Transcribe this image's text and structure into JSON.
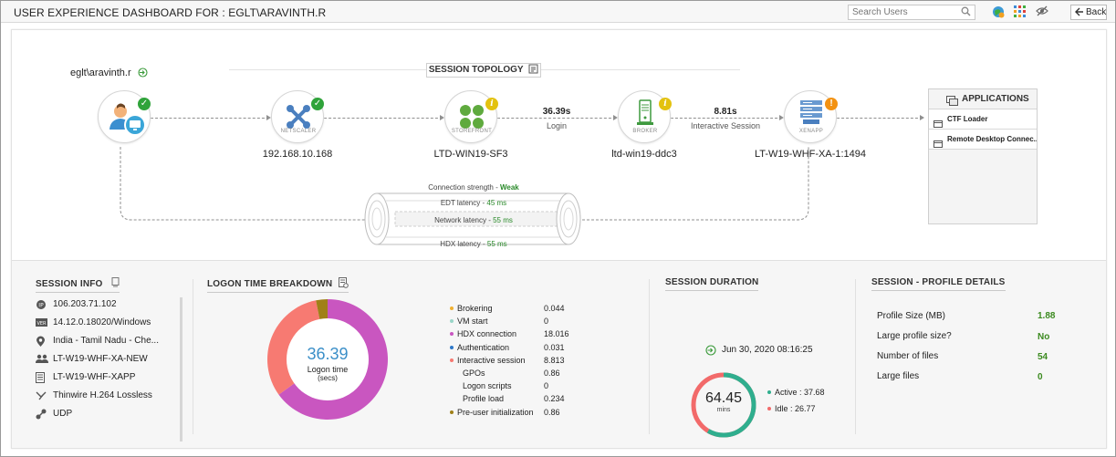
{
  "header": {
    "title": "USER EXPERIENCE DASHBOARD FOR : EGLT\\ARAVINTH.R",
    "search_placeholder": "Search Users",
    "back_label": "Back"
  },
  "topology": {
    "title": "SESSION TOPOLOGY",
    "user": "eglt\\aravinth.r",
    "nodes": [
      {
        "caption": "",
        "label": "",
        "status": "ok"
      },
      {
        "caption": "NETSCALER",
        "label": "192.168.10.168",
        "status": "ok"
      },
      {
        "caption": "STOREFRONT",
        "label": "LTD-WIN19-SF3",
        "status": "info"
      },
      {
        "caption": "BROKER",
        "label": "ltd-win19-ddc3",
        "status": "info"
      },
      {
        "caption": "XENAPP",
        "label": "LT-W19-WHF-XA-1:1494",
        "status": "warn"
      }
    ],
    "connections": [
      {
        "value": "36.39s",
        "label": "Login"
      },
      {
        "value": "8.81s",
        "label": "Interactive Session"
      }
    ],
    "applications": {
      "title": "APPLICATIONS",
      "items": [
        "CTF Loader",
        "Remote Desktop Connec..."
      ]
    },
    "latency": {
      "strength_label": "Connection strength -",
      "strength_value": "Weak",
      "edt_label": "EDT latency -",
      "edt_value": "45 ms",
      "network_label": "Network latency -",
      "network_value": "55 ms",
      "hdx_label": "HDX latency -",
      "hdx_value": "55 ms"
    }
  },
  "session_info": {
    "title": "SESSION INFO",
    "items": [
      {
        "icon": "ip-icon",
        "text": "106.203.71.102"
      },
      {
        "icon": "version-icon",
        "text": "14.12.0.18020/Windows"
      },
      {
        "icon": "location-icon",
        "text": "India - Tamil Nadu - Che..."
      },
      {
        "icon": "users-icon",
        "text": "LT-W19-WHF-XA-NEW"
      },
      {
        "icon": "document-icon",
        "text": "LT-W19-WHF-XAPP"
      },
      {
        "icon": "codec-icon",
        "text": "Thinwire H.264 Lossless"
      },
      {
        "icon": "protocol-icon",
        "text": "UDP"
      }
    ]
  },
  "logon_breakdown": {
    "title": "LOGON TIME BREAKDOWN",
    "center_value": "36.39",
    "center_label_1": "Logon time",
    "center_label_2": "(secs)",
    "rows": [
      {
        "label": "Brokering",
        "value": "0.044",
        "color": "#f0b030",
        "indent": false
      },
      {
        "label": "VM start",
        "value": "0",
        "color": "#9ad6c8",
        "indent": false
      },
      {
        "label": "HDX connection",
        "value": "18.016",
        "color": "#c956c0",
        "indent": false
      },
      {
        "label": "Authentication",
        "value": "0.031",
        "color": "#2e78c8",
        "indent": false
      },
      {
        "label": "Interactive session",
        "value": "8.813",
        "color": "#f77a72",
        "indent": false
      },
      {
        "label": "GPOs",
        "value": "0.86",
        "color": "",
        "indent": true
      },
      {
        "label": "Logon scripts",
        "value": "0",
        "color": "",
        "indent": true
      },
      {
        "label": "Profile load",
        "value": "0.234",
        "color": "",
        "indent": true
      },
      {
        "label": "Pre-user initialization",
        "value": "0.86",
        "color": "#a08018",
        "indent": false
      }
    ]
  },
  "chart_data": {
    "type": "pie",
    "title": "",
    "categories": [
      "HDX connection",
      "Interactive session",
      "Pre-user initialization"
    ],
    "values": [
      18.016,
      8.813,
      0.86
    ],
    "colors": [
      "#c956c0",
      "#f77a72",
      "#a08018"
    ]
  },
  "session_duration": {
    "title": "SESSION DURATION",
    "date": "Jun 30, 2020 08:16:25",
    "total": "64.45",
    "unit": "mins",
    "active_label": "Active : 37.68",
    "idle_label": "Idle : 26.77",
    "active_value": 37.68,
    "idle_value": 26.77,
    "active_color": "#2fae8e",
    "idle_color": "#f26a6a"
  },
  "profile_details": {
    "title": "SESSION - PROFILE DETAILS",
    "rows": [
      {
        "label": "Profile Size (MB)",
        "value": "1.88"
      },
      {
        "label": "Large profile size?",
        "value": "No"
      },
      {
        "label": "Number of files",
        "value": "54"
      },
      {
        "label": "Large files",
        "value": "0"
      }
    ]
  }
}
